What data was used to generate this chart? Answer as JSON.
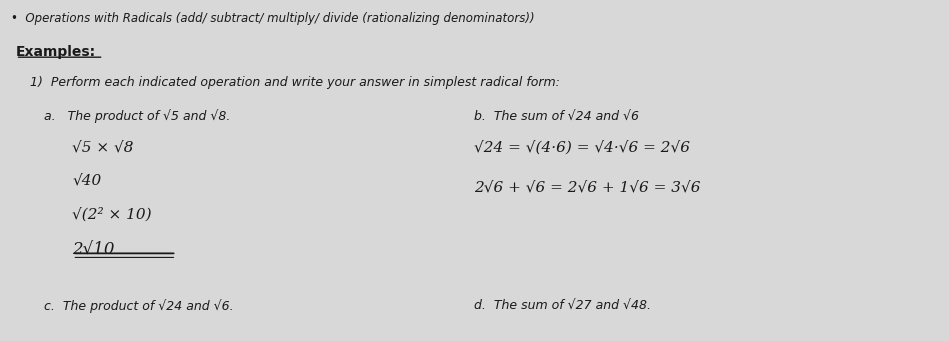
{
  "bg_color": "#d8d8d8",
  "title_bullet": "Operations with Radicals (add/ subtract/ multiply/ divide (rationalizing denominators))",
  "examples_label": "Examples:",
  "problem1_intro": "1)  Perform each indicated operation and write your answer in simplest radical form:",
  "part_a_label": "a.   The product of √5 and √8.",
  "part_b_label": "b.  The sum of √24 and √6",
  "part_c_label": "c.  The product of √24 and √6.",
  "part_d_label": "d.  The sum of √27 and √48.",
  "work_a_line1": "√5 × √8",
  "work_a_line2": "√40",
  "work_a_line3": "√(2² × 10)",
  "work_a_line4": "2√10",
  "work_b_line1": "√24 = √(4·6) = √4·√6 = 2√6",
  "work_b_line2": "2√6 + √6 = 2√6 + 1√6 = 3√6",
  "font_color": "#1a1a1a"
}
